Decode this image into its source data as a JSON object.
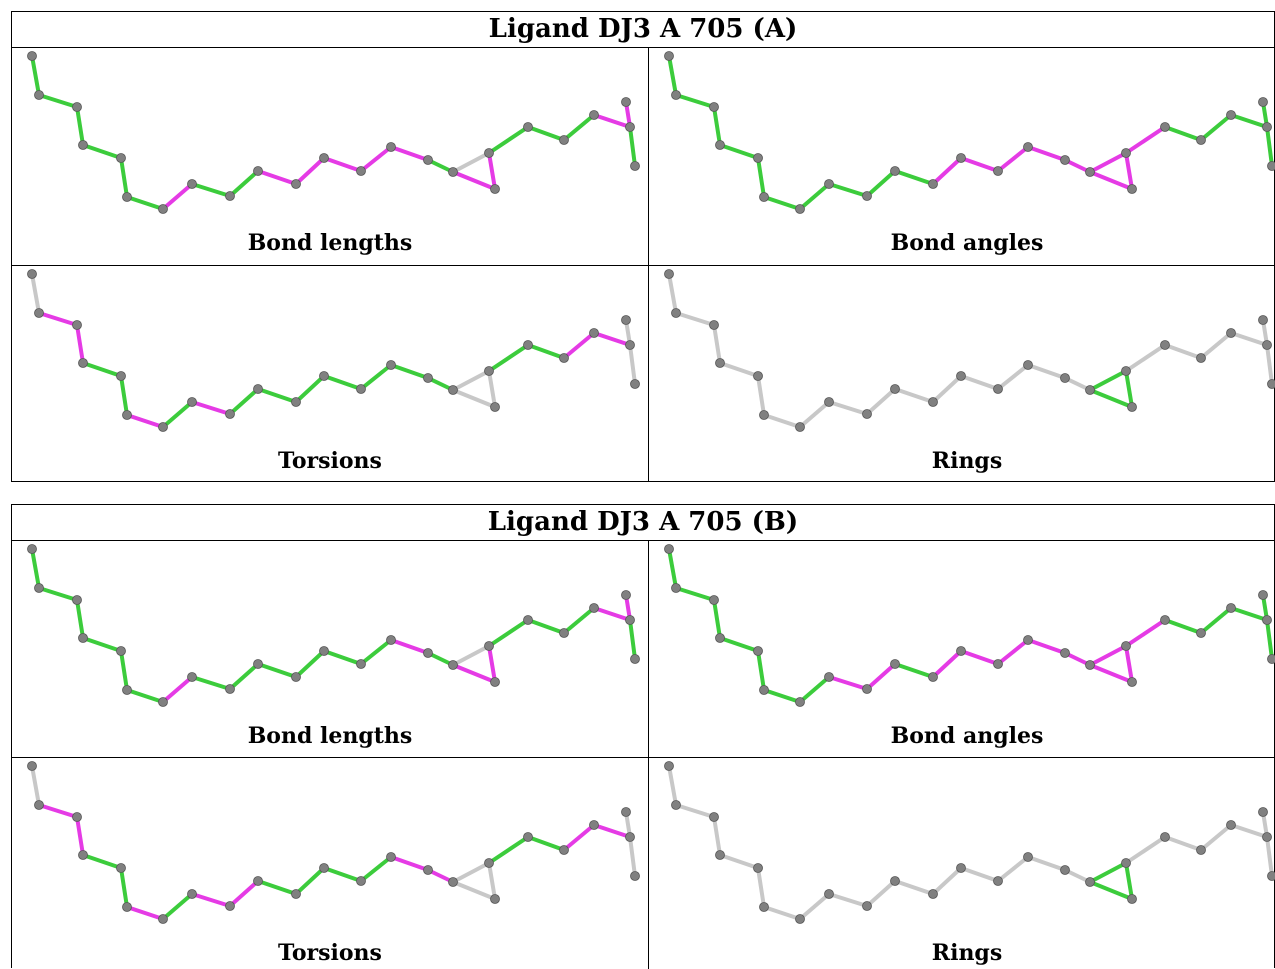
{
  "colors": {
    "outlier": "#e53be5",
    "ok": "#3ccc3c",
    "neutral": "#c8c8c8",
    "atom": "#808080"
  },
  "blocks": [
    {
      "title": "Ligand DJ3 A 705 (A)",
      "panels": [
        {
          "label": "Bond lengths",
          "bonds": [
            "ok",
            "ok",
            "ok",
            "ok",
            "ok",
            "ok",
            "outlier",
            "ok",
            "ok",
            "outlier",
            "outlier",
            "outlier",
            "outlier",
            "outlier",
            "ok",
            "neutral",
            "outlier",
            "outlier",
            "ok",
            "ok",
            "ok",
            "outlier",
            "outlier",
            "ok"
          ]
        },
        {
          "label": "Bond angles",
          "bonds": [
            "ok",
            "ok",
            "ok",
            "ok",
            "ok",
            "ok",
            "ok",
            "ok",
            "ok",
            "ok",
            "outlier",
            "outlier",
            "outlier",
            "outlier",
            "outlier",
            "outlier",
            "outlier",
            "outlier",
            "outlier",
            "ok",
            "ok",
            "ok",
            "ok",
            "ok"
          ]
        },
        {
          "label": "Torsions",
          "bonds": [
            "neutral",
            "outlier",
            "outlier",
            "ok",
            "ok",
            "outlier",
            "ok",
            "outlier",
            "ok",
            "ok",
            "ok",
            "ok",
            "ok",
            "ok",
            "ok",
            "neutral",
            "neutral",
            "neutral",
            "ok",
            "ok",
            "outlier",
            "outlier",
            "neutral",
            "neutral"
          ]
        },
        {
          "label": "Rings",
          "bonds": [
            "neutral",
            "neutral",
            "neutral",
            "neutral",
            "neutral",
            "neutral",
            "neutral",
            "neutral",
            "neutral",
            "neutral",
            "neutral",
            "neutral",
            "neutral",
            "neutral",
            "neutral",
            "ok",
            "ok",
            "ok",
            "neutral",
            "neutral",
            "neutral",
            "neutral",
            "neutral",
            "neutral"
          ]
        }
      ]
    },
    {
      "title": "Ligand DJ3 A 705 (B)",
      "panels": [
        {
          "label": "Bond lengths",
          "bonds": [
            "ok",
            "ok",
            "ok",
            "ok",
            "ok",
            "ok",
            "outlier",
            "ok",
            "ok",
            "ok",
            "ok",
            "ok",
            "ok",
            "outlier",
            "ok",
            "neutral",
            "outlier",
            "outlier",
            "ok",
            "ok",
            "ok",
            "outlier",
            "outlier",
            "ok"
          ]
        },
        {
          "label": "Bond angles",
          "bonds": [
            "ok",
            "ok",
            "ok",
            "ok",
            "ok",
            "ok",
            "ok",
            "outlier",
            "outlier",
            "ok",
            "outlier",
            "outlier",
            "outlier",
            "outlier",
            "outlier",
            "outlier",
            "outlier",
            "outlier",
            "outlier",
            "ok",
            "ok",
            "ok",
            "ok",
            "ok"
          ]
        },
        {
          "label": "Torsions",
          "bonds": [
            "neutral",
            "outlier",
            "outlier",
            "ok",
            "ok",
            "outlier",
            "ok",
            "outlier",
            "outlier",
            "ok",
            "ok",
            "ok",
            "ok",
            "outlier",
            "outlier",
            "neutral",
            "neutral",
            "neutral",
            "ok",
            "ok",
            "outlier",
            "outlier",
            "neutral",
            "neutral"
          ]
        },
        {
          "label": "Rings",
          "bonds": [
            "neutral",
            "neutral",
            "neutral",
            "neutral",
            "neutral",
            "neutral",
            "neutral",
            "neutral",
            "neutral",
            "neutral",
            "neutral",
            "neutral",
            "neutral",
            "neutral",
            "neutral",
            "ok",
            "ok",
            "ok",
            "neutral",
            "neutral",
            "neutral",
            "neutral",
            "neutral",
            "neutral"
          ]
        }
      ]
    }
  ]
}
